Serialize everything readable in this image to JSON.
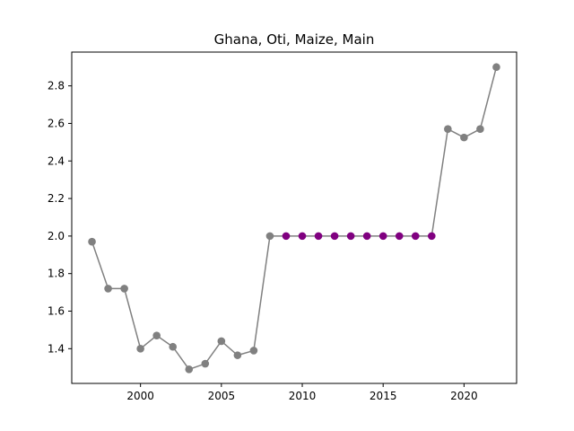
{
  "chart_data": {
    "type": "line",
    "title": "Ghana, Oti, Maize, Main",
    "xlabel": "",
    "ylabel": "",
    "xlim": [
      1995.75,
      2023.25
    ],
    "ylim": [
      1.215,
      2.98
    ],
    "xticks": [
      "2000",
      "2005",
      "2010",
      "2015",
      "2020"
    ],
    "yticks": [
      "1.4",
      "1.6",
      "1.8",
      "2.0",
      "2.2",
      "2.4",
      "2.6",
      "2.8"
    ],
    "grid": false,
    "line_color": "#808080",
    "series": [
      {
        "color": "#808080",
        "x": [
          1997,
          1998,
          1999,
          2000,
          2001,
          2002,
          2003,
          2004,
          2005,
          2006,
          2007,
          2008
        ],
        "y": [
          1.97,
          1.72,
          1.72,
          1.4,
          1.47,
          1.41,
          1.29,
          1.32,
          1.44,
          1.365,
          1.39,
          2.0
        ]
      },
      {
        "color": "#800080",
        "x": [
          2009,
          2010,
          2011,
          2012,
          2013,
          2014,
          2015,
          2016,
          2017,
          2018
        ],
        "y": [
          2.0,
          2.0,
          2.0,
          2.0,
          2.0,
          2.0,
          2.0,
          2.0,
          2.0,
          2.0
        ]
      },
      {
        "color": "#808080",
        "x": [
          2019,
          2020,
          2021,
          2022
        ],
        "y": [
          2.57,
          2.525,
          2.57,
          2.9
        ]
      }
    ]
  }
}
